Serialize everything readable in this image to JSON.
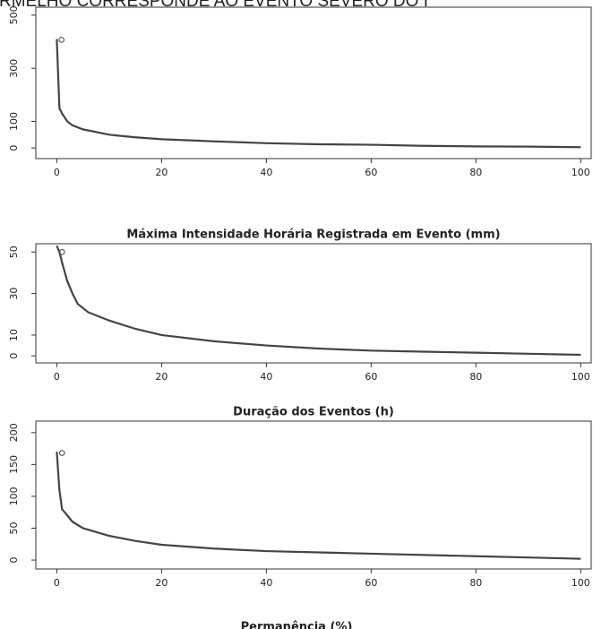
{
  "header_text": "RMELHO CORRESPONDE AO EVENTO SEVERO DO I",
  "x_label": "Permanência (%)",
  "chart_data": [
    {
      "type": "line",
      "title": null,
      "color": "#444444",
      "x": [
        0,
        0.5,
        1,
        2,
        3,
        5,
        10,
        15,
        20,
        30,
        40,
        50,
        60,
        70,
        80,
        90,
        100
      ],
      "values": [
        410,
        150,
        130,
        100,
        85,
        70,
        50,
        40,
        33,
        25,
        18,
        14,
        12,
        8,
        6,
        5,
        3
      ],
      "marker_x": 0.9,
      "marker_value": 407,
      "xlim": [
        -4,
        102
      ],
      "xticks": [
        0,
        20,
        40,
        60,
        80,
        100
      ],
      "ylim": [
        -40,
        530
      ],
      "yticks": [
        0,
        100,
        300,
        500
      ]
    },
    {
      "type": "line",
      "title": "Máxima Intensidade Horária Registrada em Evento (mm)",
      "color": "#444444",
      "x": [
        0,
        0.5,
        1,
        2,
        3,
        4,
        6,
        10,
        15,
        20,
        30,
        40,
        50,
        60,
        70,
        80,
        90,
        100
      ],
      "values": [
        53,
        50,
        45,
        36,
        30,
        25,
        21,
        17,
        13,
        10,
        7,
        5,
        3.5,
        2.5,
        2,
        1.5,
        1,
        0.5
      ],
      "marker_x": 1,
      "marker_value": 50,
      "xlim": [
        -4,
        102
      ],
      "xticks": [
        0,
        20,
        40,
        60,
        80,
        100
      ],
      "ylim": [
        -3.4,
        54
      ],
      "yticks": [
        0,
        10,
        30,
        50
      ]
    },
    {
      "type": "line",
      "title": "Duração dos Eventos (h)",
      "color": "#444444",
      "x": [
        0,
        0.5,
        1,
        2,
        3,
        5,
        10,
        15,
        20,
        30,
        40,
        50,
        60,
        70,
        80,
        90,
        100
      ],
      "values": [
        170,
        110,
        80,
        70,
        60,
        50,
        38,
        30,
        24,
        18,
        14,
        12,
        10,
        8,
        6,
        4,
        2
      ],
      "marker_x": 1,
      "marker_value": 168,
      "xlim": [
        -4,
        102
      ],
      "xticks": [
        0,
        20,
        40,
        60,
        80,
        100
      ],
      "ylim": [
        -14,
        218
      ],
      "yticks": [
        0,
        50,
        100,
        150,
        200
      ]
    }
  ]
}
